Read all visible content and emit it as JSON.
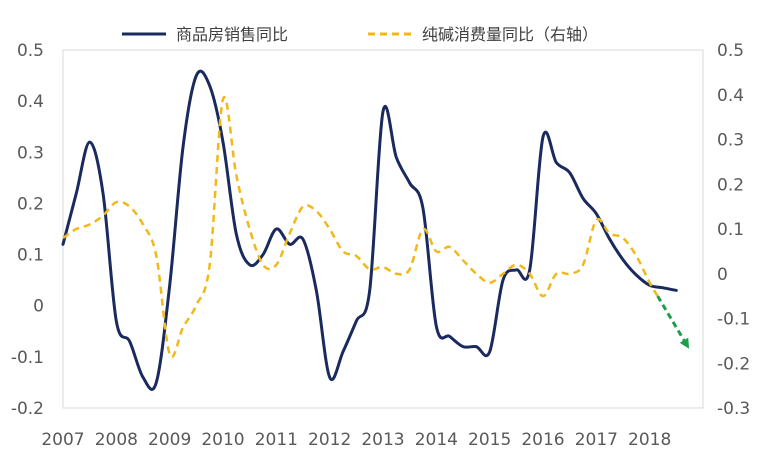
{
  "chart_data": {
    "type": "line",
    "legend_position": "top",
    "grid": false,
    "x_ticks": [
      "2007",
      "2008",
      "2009",
      "2010",
      "2011",
      "2012",
      "2013",
      "2014",
      "2015",
      "2016",
      "2017",
      "2018"
    ],
    "xlim": [
      2007,
      2019
    ],
    "y_left": {
      "ylim": [
        -0.2,
        0.5
      ],
      "ticks": [
        "-0.2",
        "-0.1",
        "0",
        "0.1",
        "0.2",
        "0.3",
        "0.4",
        "0.5"
      ]
    },
    "y_right": {
      "ylim": [
        -0.3,
        0.5
      ],
      "ticks": [
        "-0.3",
        "-0.2",
        "-0.1",
        "0",
        "0.1",
        "0.2",
        "0.3",
        "0.4",
        "0.5"
      ]
    },
    "series": [
      {
        "name": "商品房销售同比",
        "axis": "left",
        "color": "#1a2a5e",
        "style": "solid",
        "points": [
          [
            2007.0,
            0.12
          ],
          [
            2007.25,
            0.22
          ],
          [
            2007.5,
            0.32
          ],
          [
            2007.75,
            0.22
          ],
          [
            2008.0,
            -0.03
          ],
          [
            2008.25,
            -0.07
          ],
          [
            2008.5,
            -0.14
          ],
          [
            2008.75,
            -0.15
          ],
          [
            2009.0,
            0.04
          ],
          [
            2009.25,
            0.31
          ],
          [
            2009.5,
            0.45
          ],
          [
            2009.75,
            0.43
          ],
          [
            2010.0,
            0.32
          ],
          [
            2010.25,
            0.14
          ],
          [
            2010.5,
            0.08
          ],
          [
            2010.75,
            0.1
          ],
          [
            2011.0,
            0.15
          ],
          [
            2011.25,
            0.12
          ],
          [
            2011.5,
            0.13
          ],
          [
            2011.75,
            0.03
          ],
          [
            2012.0,
            -0.14
          ],
          [
            2012.25,
            -0.09
          ],
          [
            2012.5,
            -0.03
          ],
          [
            2012.75,
            0.03
          ],
          [
            2013.0,
            0.38
          ],
          [
            2013.25,
            0.29
          ],
          [
            2013.5,
            0.24
          ],
          [
            2013.75,
            0.19
          ],
          [
            2014.0,
            -0.04
          ],
          [
            2014.25,
            -0.06
          ],
          [
            2014.5,
            -0.08
          ],
          [
            2014.75,
            -0.08
          ],
          [
            2015.0,
            -0.09
          ],
          [
            2015.25,
            0.05
          ],
          [
            2015.5,
            0.07
          ],
          [
            2015.75,
            0.07
          ],
          [
            2016.0,
            0.33
          ],
          [
            2016.25,
            0.28
          ],
          [
            2016.5,
            0.26
          ],
          [
            2016.75,
            0.21
          ],
          [
            2017.0,
            0.18
          ],
          [
            2017.25,
            0.13
          ],
          [
            2017.5,
            0.09
          ],
          [
            2017.75,
            0.06
          ],
          [
            2018.0,
            0.04
          ],
          [
            2018.25,
            0.035
          ],
          [
            2018.5,
            0.03
          ]
        ]
      },
      {
        "name": "纯碱消费量同比（右轴）",
        "axis": "right",
        "color": "#f2b81a",
        "style": "dashed",
        "points": [
          [
            2007.0,
            0.08
          ],
          [
            2007.25,
            0.1
          ],
          [
            2007.5,
            0.11
          ],
          [
            2007.75,
            0.13
          ],
          [
            2008.0,
            0.16
          ],
          [
            2008.25,
            0.15
          ],
          [
            2008.5,
            0.11
          ],
          [
            2008.75,
            0.04
          ],
          [
            2009.0,
            -0.18
          ],
          [
            2009.25,
            -0.12
          ],
          [
            2009.5,
            -0.07
          ],
          [
            2009.75,
            0.02
          ],
          [
            2010.0,
            0.39
          ],
          [
            2010.25,
            0.22
          ],
          [
            2010.5,
            0.1
          ],
          [
            2010.75,
            0.02
          ],
          [
            2011.0,
            0.02
          ],
          [
            2011.25,
            0.09
          ],
          [
            2011.5,
            0.15
          ],
          [
            2011.75,
            0.14
          ],
          [
            2012.0,
            0.1
          ],
          [
            2012.25,
            0.05
          ],
          [
            2012.5,
            0.04
          ],
          [
            2012.75,
            0.01
          ],
          [
            2013.0,
            0.015
          ],
          [
            2013.25,
            0.0
          ],
          [
            2013.5,
            0.01
          ],
          [
            2013.75,
            0.1
          ],
          [
            2014.0,
            0.05
          ],
          [
            2014.25,
            0.06
          ],
          [
            2014.5,
            0.03
          ],
          [
            2014.75,
            0.0
          ],
          [
            2015.0,
            -0.02
          ],
          [
            2015.25,
            0.0
          ],
          [
            2015.5,
            0.02
          ],
          [
            2015.75,
            0.0
          ],
          [
            2016.0,
            -0.05
          ],
          [
            2016.25,
            0.0
          ],
          [
            2016.5,
            0.0
          ],
          [
            2016.75,
            0.02
          ],
          [
            2017.0,
            0.12
          ],
          [
            2017.25,
            0.09
          ],
          [
            2017.5,
            0.08
          ],
          [
            2017.75,
            0.04
          ],
          [
            2018.0,
            -0.02
          ],
          [
            2018.15,
            -0.05
          ]
        ]
      }
    ],
    "annotation": {
      "type": "arrow",
      "color": "#1e9e4a",
      "style": "dashed",
      "from": [
        2018.15,
        -0.05
      ],
      "to": [
        2018.7,
        -0.16
      ],
      "axis": "right"
    }
  }
}
